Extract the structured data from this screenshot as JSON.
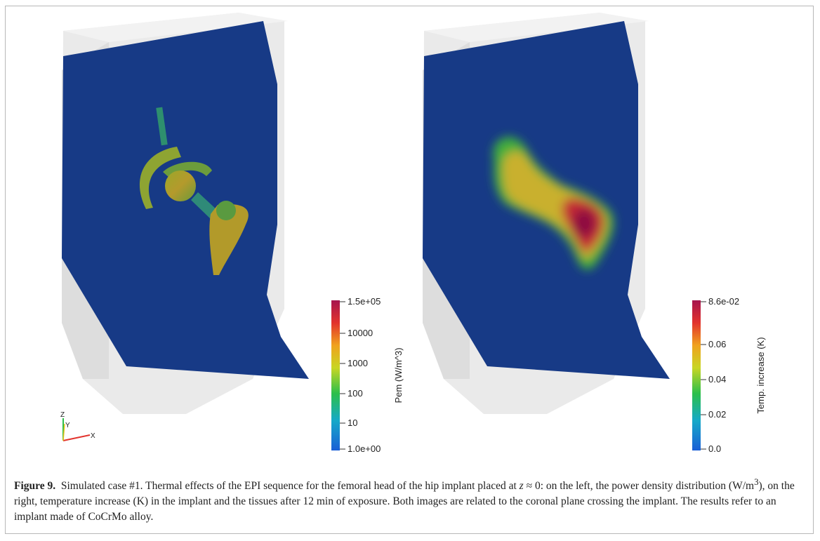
{
  "figure": {
    "label": "Figure 9.",
    "caption_parts": [
      "Simulated case #1. Thermal effects of the EPI sequence for the femoral head of the hip implant placed at ",
      "z",
      " ≈ 0: on the left, the power density distribution (W/m",
      "3",
      "), on the right, temperature increase (K) in the implant and the tissues after 12 min of exposure. Both images are related to the coronal plane crossing the implant. The results refer to an implant made of CoCrMo alloy."
    ]
  },
  "left_panel": {
    "colorbar": {
      "title": "Pem (W/m^3)",
      "scale": "log",
      "ticks": [
        "1.5e+05",
        "10000",
        "1000",
        "100",
        "10",
        "1.0e+00"
      ]
    },
    "axes_triad": {
      "z": "Z",
      "y": "Y",
      "x": "X"
    }
  },
  "right_panel": {
    "colorbar": {
      "title": "Temp. increase (K)",
      "scale": "linear",
      "ticks": [
        "8.6e-02",
        "0.06",
        "0.04",
        "0.02",
        "0.0"
      ]
    }
  },
  "colors": {
    "plane": "#173a86",
    "box": "#e4e4e4",
    "colormap": [
      "#1a5fd6",
      "#16a9c8",
      "#2cbf4a",
      "#c8d624",
      "#f0a21e",
      "#e2332d",
      "#a6134e"
    ]
  }
}
